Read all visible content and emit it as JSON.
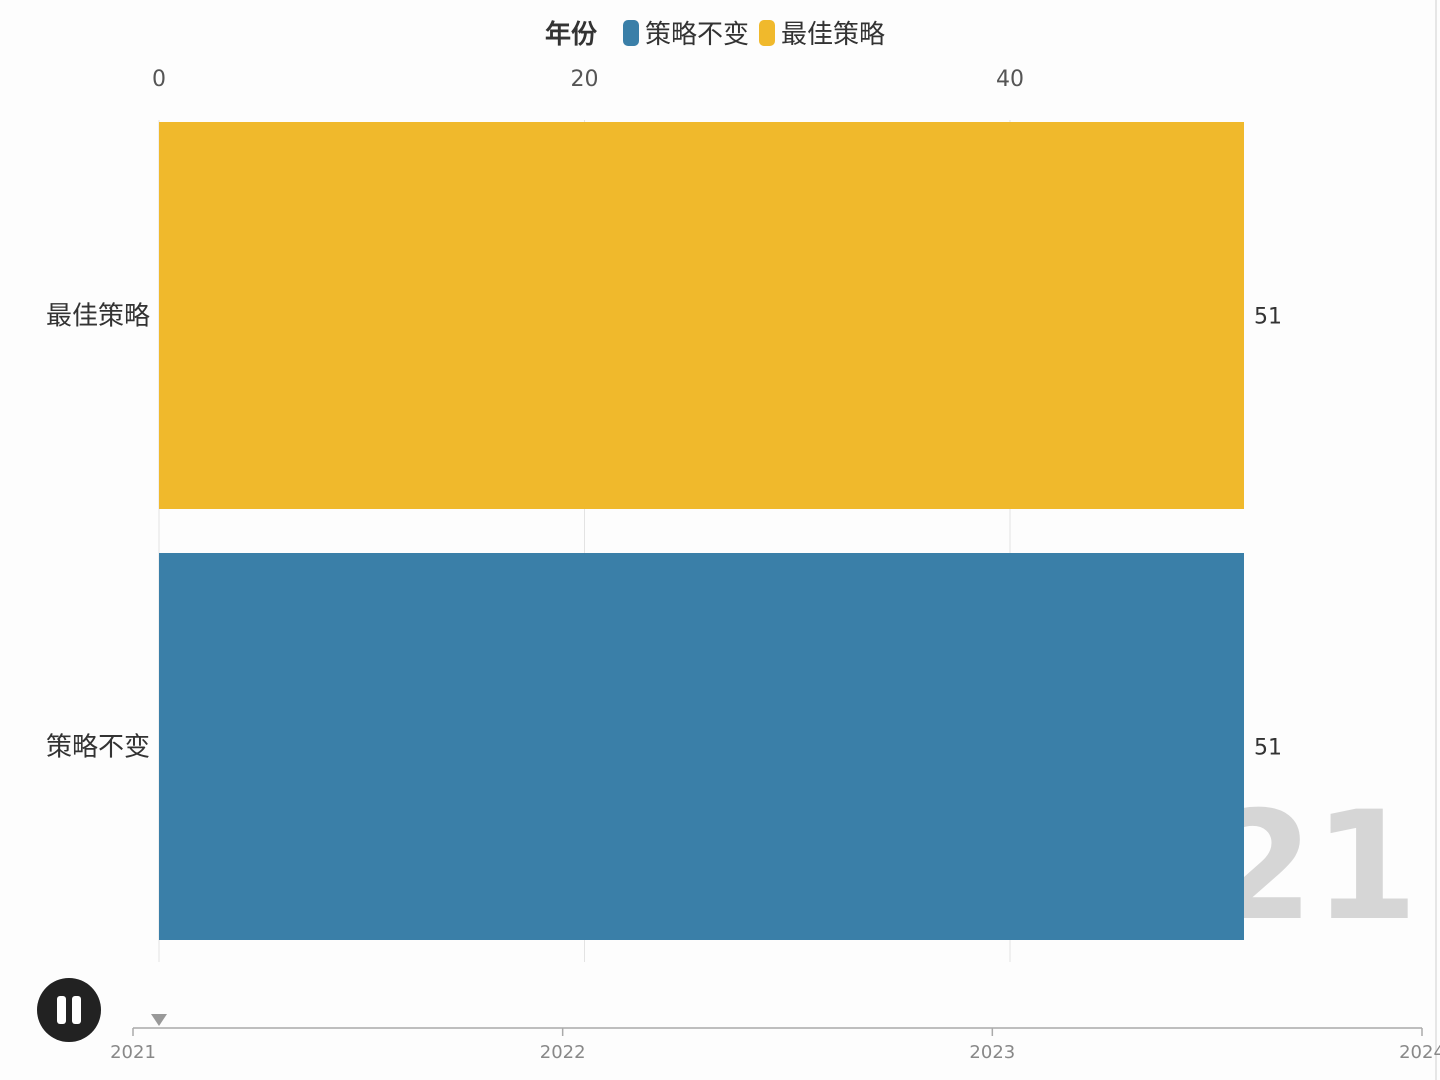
{
  "legend": {
    "title": "年份",
    "items": [
      {
        "label": "策略不变",
        "color": "#3a7fa8"
      },
      {
        "label": "最佳策略",
        "color": "#f0b92c"
      }
    ]
  },
  "chart_data": {
    "type": "bar",
    "orientation": "horizontal",
    "categories": [
      "最佳策略",
      "策略不变"
    ],
    "values": [
      51,
      51
    ],
    "colors": [
      "#f0b92c",
      "#3a7fa8"
    ],
    "xlim": [
      0,
      51
    ],
    "xticks": [
      0,
      20,
      40
    ],
    "axis_position": "top",
    "grid": true,
    "current_period": "2021"
  },
  "timeline": {
    "labels": [
      "2021",
      "2022",
      "2023",
      "2024"
    ],
    "current": "2021"
  },
  "controls": {
    "play_state": "playing",
    "button_icon": "pause-icon"
  }
}
